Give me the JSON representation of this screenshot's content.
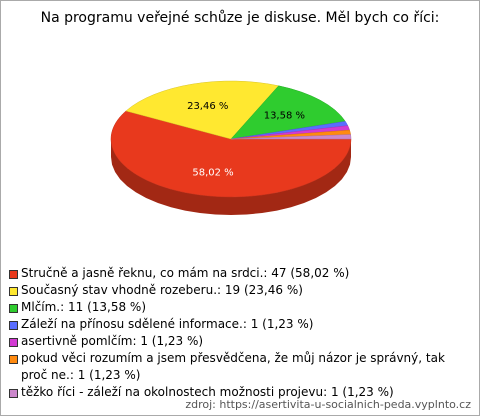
{
  "chart_data": {
    "type": "pie",
    "title": "Na programu veřejné schůze je diskuse. Měl bych co říci:",
    "categories": [
      "Stručně a jasně řeknu, co mám na srdci.: 47 (58,02 %)",
      "Současný stav vhodně rozeberu.: 19 (23,46 %)",
      "Mlčím.: 11 (13,58 %)",
      "Záleží na přínosu sdělené informace.: 1 (1,23 %)",
      "asertivně pomlčím: 1 (1,23 %)",
      "pokud věci rozumím a jsem přesvědčena, že můj názor je správný,  tak proč ne.: 1 (1,23 %)",
      "těžko říci - záleží na okolnostech možnosti projevu: 1 (1,23 %)"
    ],
    "values": [
      58.02,
      23.46,
      13.58,
      1.23,
      1.23,
      1.23,
      1.23
    ],
    "value_labels": [
      "58,02 %",
      "23,46 %",
      "13,58 %",
      null,
      null,
      null,
      null
    ],
    "colors": [
      "#e8391d",
      "#ffe830",
      "#2fcc2f",
      "#5a6dff",
      "#d23ad2",
      "#ff8a10",
      "#cc88cc"
    ],
    "source": "zdroj: https://asertivita-u-socialnich-peda.vyplnto.cz"
  }
}
